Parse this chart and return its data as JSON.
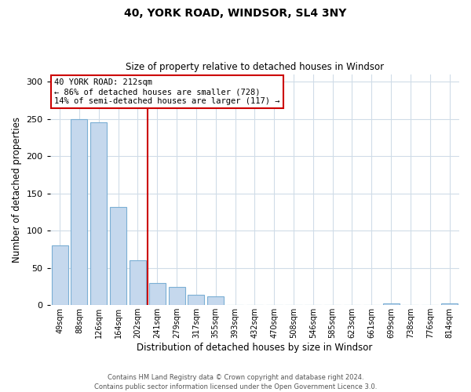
{
  "title": "40, YORK ROAD, WINDSOR, SL4 3NY",
  "subtitle": "Size of property relative to detached houses in Windsor",
  "xlabel": "Distribution of detached houses by size in Windsor",
  "ylabel": "Number of detached properties",
  "bar_labels": [
    "49sqm",
    "88sqm",
    "126sqm",
    "164sqm",
    "202sqm",
    "241sqm",
    "279sqm",
    "317sqm",
    "355sqm",
    "393sqm",
    "432sqm",
    "470sqm",
    "508sqm",
    "546sqm",
    "585sqm",
    "623sqm",
    "661sqm",
    "699sqm",
    "738sqm",
    "776sqm",
    "814sqm"
  ],
  "bar_values": [
    80,
    250,
    245,
    132,
    60,
    30,
    25,
    14,
    12,
    0,
    0,
    0,
    0,
    0,
    0,
    0,
    0,
    2,
    0,
    0,
    2
  ],
  "bar_color": "#c5d8ed",
  "bar_edgecolor": "#7bafd4",
  "vline_x": 4.5,
  "vline_color": "#cc0000",
  "annotation_title": "40 YORK ROAD: 212sqm",
  "annotation_line1": "← 86% of detached houses are smaller (728)",
  "annotation_line2": "14% of semi-detached houses are larger (117) →",
  "annotation_box_edgecolor": "#cc0000",
  "ylim": [
    0,
    310
  ],
  "yticks": [
    0,
    50,
    100,
    150,
    200,
    250,
    300
  ],
  "footer1": "Contains HM Land Registry data © Crown copyright and database right 2024.",
  "footer2": "Contains public sector information licensed under the Open Government Licence 3.0.",
  "background_color": "#ffffff",
  "grid_color": "#d0dce8"
}
